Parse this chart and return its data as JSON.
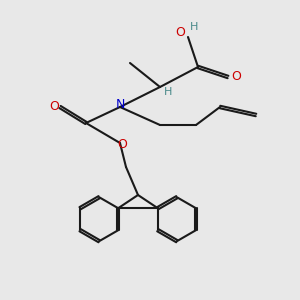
{
  "bg_color": "#e8e8e8",
  "bond_color": "#1a1a1a",
  "bond_width": 1.5,
  "atom_colors": {
    "O": "#cc0000",
    "N": "#0000cc",
    "H": "#4a8a8a",
    "C": "#1a1a1a"
  },
  "font_size_atom": 9,
  "font_size_small": 7
}
